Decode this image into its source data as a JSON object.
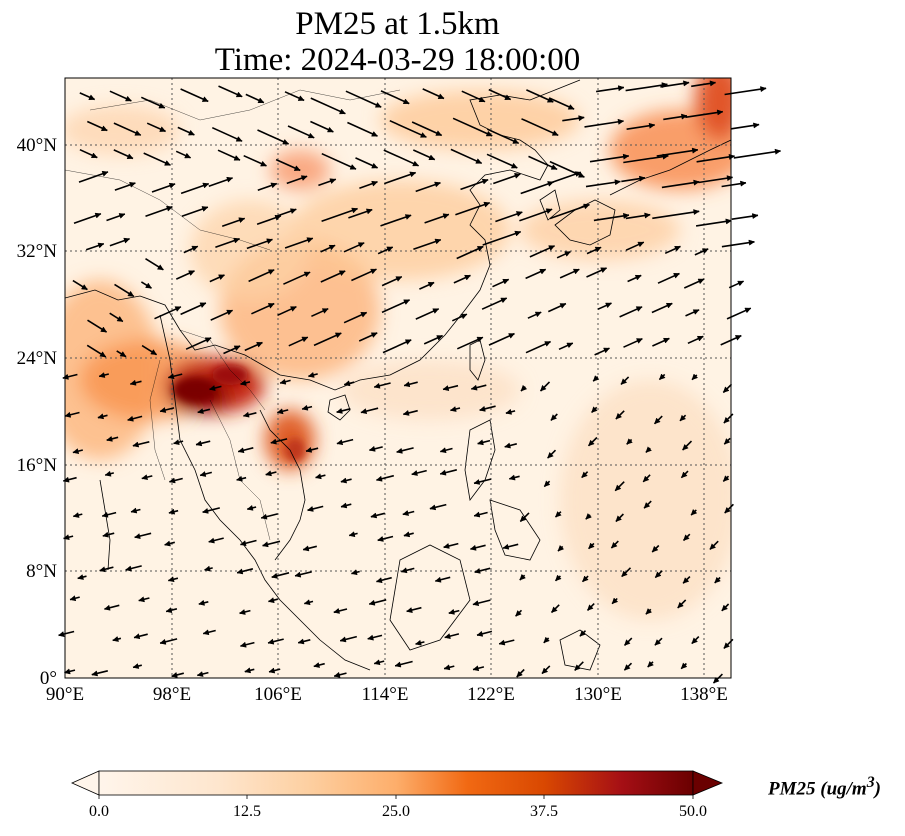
{
  "title": {
    "line1": "PM25 at 1.5km",
    "line2": "Time: 2024-03-29 18:00:00"
  },
  "map": {
    "lon_range": [
      90,
      140
    ],
    "lat_range": [
      0,
      45
    ],
    "lon_ticks": [
      "90°E",
      "98°E",
      "106°E",
      "114°E",
      "122°E",
      "130°E",
      "138°E"
    ],
    "lat_ticks": [
      "0°",
      "8°N",
      "16°N",
      "24°N",
      "32°N",
      "40°N"
    ],
    "gridlines": "dotted",
    "field": "PM25 concentration with wind vectors",
    "hotspots": [
      {
        "region": "Myanmar / Northern Laos / Yunnan border",
        "level": "very high"
      },
      {
        "region": "Northern Vietnam",
        "level": "high"
      },
      {
        "region": "Southern China / Guangxi / Guangdong",
        "level": "moderate"
      },
      {
        "region": "Northern Japan / East Sea",
        "level": "high"
      }
    ]
  },
  "colorbar": {
    "ticks": [
      "0.0",
      "12.5",
      "25.0",
      "37.5",
      "50.0"
    ],
    "min": 0,
    "max": 50,
    "colormap": [
      "#fff5eb",
      "#fdd49e",
      "#fdae6b",
      "#f16913",
      "#d94801",
      "#8c0000",
      "#5a0000"
    ],
    "label": "PM25 (ug/m",
    "label_sup": "3",
    "label_end": ")"
  }
}
